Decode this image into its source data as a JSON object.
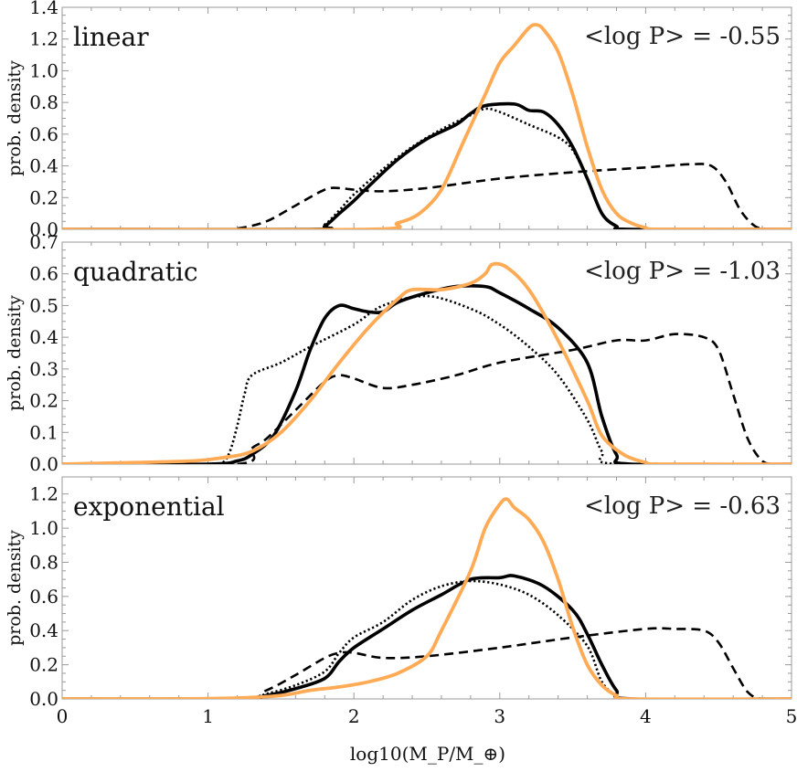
{
  "chart_data": {
    "type": "line",
    "xlabel": "log10(M_P/M_⊕)",
    "xlim": [
      0,
      5
    ],
    "xticks": [
      "0",
      "1",
      "2",
      "3",
      "4",
      "5"
    ],
    "series_styles": [
      {
        "key": "dashed",
        "color": "#000000",
        "dash": "dashed"
      },
      {
        "key": "dotted",
        "color": "#000000",
        "dash": "dotted"
      },
      {
        "key": "solid_black",
        "color": "#000000",
        "dash": "solid"
      },
      {
        "key": "orange",
        "color": "#FFAA55",
        "dash": "solid"
      }
    ],
    "panels": [
      {
        "label": "linear",
        "annotation": "<log P> = -0.55",
        "ylabel": "prob. density",
        "ylim": [
          0,
          1.4
        ],
        "yticks": [
          "0.0",
          "0.2",
          "0.4",
          "0.6",
          "0.8",
          "1.0",
          "1.2",
          "1.4"
        ],
        "series": {
          "dashed": [
            [
              0,
              0
            ],
            [
              1.0,
              0
            ],
            [
              1.2,
              0.005
            ],
            [
              1.4,
              0.05
            ],
            [
              1.6,
              0.15
            ],
            [
              1.8,
              0.25
            ],
            [
              1.9,
              0.26
            ],
            [
              2.0,
              0.25
            ],
            [
              2.2,
              0.24
            ],
            [
              2.5,
              0.26
            ],
            [
              3.0,
              0.32
            ],
            [
              3.5,
              0.36
            ],
            [
              4.0,
              0.39
            ],
            [
              4.3,
              0.41
            ],
            [
              4.45,
              0.4
            ],
            [
              4.55,
              0.3
            ],
            [
              4.65,
              0.12
            ],
            [
              4.75,
              0.02
            ],
            [
              4.85,
              0
            ],
            [
              5,
              0
            ]
          ],
          "dotted": [
            [
              0,
              0
            ],
            [
              1.7,
              0
            ],
            [
              1.8,
              0.03
            ],
            [
              1.9,
              0.12
            ],
            [
              2.0,
              0.22
            ],
            [
              2.2,
              0.38
            ],
            [
              2.4,
              0.52
            ],
            [
              2.6,
              0.63
            ],
            [
              2.8,
              0.72
            ],
            [
              2.9,
              0.76
            ],
            [
              3.0,
              0.74
            ],
            [
              3.2,
              0.66
            ],
            [
              3.4,
              0.58
            ],
            [
              3.5,
              0.5
            ],
            [
              3.6,
              0.32
            ],
            [
              3.7,
              0.1
            ],
            [
              3.8,
              0.02
            ],
            [
              3.9,
              0
            ],
            [
              5,
              0
            ]
          ],
          "solid_black": [
            [
              0,
              0
            ],
            [
              1.7,
              0
            ],
            [
              1.8,
              0.02
            ],
            [
              1.9,
              0.1
            ],
            [
              2.0,
              0.18
            ],
            [
              2.1,
              0.27
            ],
            [
              2.3,
              0.44
            ],
            [
              2.5,
              0.57
            ],
            [
              2.7,
              0.66
            ],
            [
              2.8,
              0.73
            ],
            [
              2.9,
              0.78
            ],
            [
              3.1,
              0.79
            ],
            [
              3.2,
              0.75
            ],
            [
              3.3,
              0.74
            ],
            [
              3.4,
              0.66
            ],
            [
              3.5,
              0.52
            ],
            [
              3.6,
              0.32
            ],
            [
              3.7,
              0.1
            ],
            [
              3.8,
              0.02
            ],
            [
              3.9,
              0
            ],
            [
              5,
              0
            ]
          ],
          "orange": [
            [
              0,
              0
            ],
            [
              2.1,
              0
            ],
            [
              2.3,
              0.04
            ],
            [
              2.45,
              0.1
            ],
            [
              2.6,
              0.25
            ],
            [
              2.75,
              0.55
            ],
            [
              2.9,
              0.85
            ],
            [
              3.0,
              1.05
            ],
            [
              3.1,
              1.16
            ],
            [
              3.2,
              1.27
            ],
            [
              3.25,
              1.29
            ],
            [
              3.3,
              1.26
            ],
            [
              3.4,
              1.12
            ],
            [
              3.5,
              0.85
            ],
            [
              3.6,
              0.52
            ],
            [
              3.7,
              0.25
            ],
            [
              3.8,
              0.1
            ],
            [
              3.9,
              0.04
            ],
            [
              4.0,
              0.01
            ],
            [
              4.1,
              0
            ],
            [
              5,
              0
            ]
          ]
        }
      },
      {
        "label": "quadratic",
        "annotation": "<log P> = -1.03",
        "ylabel": "prob. density",
        "ylim": [
          0,
          0.7
        ],
        "yticks": [
          "0.0",
          "0.1",
          "0.2",
          "0.3",
          "0.4",
          "0.5",
          "0.6",
          "0.7"
        ],
        "series": {
          "dashed": [
            [
              0,
              0
            ],
            [
              1.2,
              0
            ],
            [
              1.3,
              0.05
            ],
            [
              1.4,
              0.08
            ],
            [
              1.6,
              0.17
            ],
            [
              1.8,
              0.26
            ],
            [
              1.9,
              0.28
            ],
            [
              2.0,
              0.27
            ],
            [
              2.2,
              0.24
            ],
            [
              2.4,
              0.25
            ],
            [
              2.7,
              0.28
            ],
            [
              3.0,
              0.32
            ],
            [
              3.5,
              0.36
            ],
            [
              3.8,
              0.39
            ],
            [
              4.0,
              0.39
            ],
            [
              4.2,
              0.41
            ],
            [
              4.4,
              0.4
            ],
            [
              4.5,
              0.36
            ],
            [
              4.6,
              0.22
            ],
            [
              4.7,
              0.08
            ],
            [
              4.8,
              0.01
            ],
            [
              4.9,
              0
            ],
            [
              5,
              0
            ]
          ],
          "dotted": [
            [
              0,
              0
            ],
            [
              1.0,
              0
            ],
            [
              1.1,
              0.005
            ],
            [
              1.15,
              0.04
            ],
            [
              1.2,
              0.12
            ],
            [
              1.25,
              0.22
            ],
            [
              1.3,
              0.28
            ],
            [
              1.5,
              0.32
            ],
            [
              1.7,
              0.37
            ],
            [
              2.0,
              0.44
            ],
            [
              2.2,
              0.5
            ],
            [
              2.5,
              0.53
            ],
            [
              2.8,
              0.49
            ],
            [
              3.0,
              0.44
            ],
            [
              3.2,
              0.37
            ],
            [
              3.4,
              0.28
            ],
            [
              3.6,
              0.14
            ],
            [
              3.7,
              0.04
            ],
            [
              3.8,
              0
            ],
            [
              5,
              0
            ]
          ],
          "solid_black": [
            [
              0,
              0
            ],
            [
              1.0,
              0
            ],
            [
              1.2,
              0.01
            ],
            [
              1.3,
              0.03
            ],
            [
              1.45,
              0.09
            ],
            [
              1.6,
              0.23
            ],
            [
              1.7,
              0.36
            ],
            [
              1.8,
              0.46
            ],
            [
              1.9,
              0.5
            ],
            [
              2.0,
              0.49
            ],
            [
              2.1,
              0.48
            ],
            [
              2.2,
              0.48
            ],
            [
              2.3,
              0.51
            ],
            [
              2.5,
              0.54
            ],
            [
              2.7,
              0.56
            ],
            [
              2.9,
              0.56
            ],
            [
              3.0,
              0.54
            ],
            [
              3.2,
              0.49
            ],
            [
              3.4,
              0.43
            ],
            [
              3.6,
              0.32
            ],
            [
              3.7,
              0.15
            ],
            [
              3.8,
              0.03
            ],
            [
              3.9,
              0
            ],
            [
              5,
              0
            ]
          ],
          "orange": [
            [
              0,
              0
            ],
            [
              0.5,
              0.005
            ],
            [
              0.9,
              0.01
            ],
            [
              1.1,
              0.02
            ],
            [
              1.3,
              0.04
            ],
            [
              1.5,
              0.1
            ],
            [
              1.7,
              0.2
            ],
            [
              1.9,
              0.32
            ],
            [
              2.1,
              0.43
            ],
            [
              2.3,
              0.52
            ],
            [
              2.4,
              0.55
            ],
            [
              2.6,
              0.55
            ],
            [
              2.8,
              0.57
            ],
            [
              2.9,
              0.6
            ],
            [
              2.95,
              0.63
            ],
            [
              3.05,
              0.62
            ],
            [
              3.2,
              0.55
            ],
            [
              3.4,
              0.39
            ],
            [
              3.6,
              0.2
            ],
            [
              3.7,
              0.09
            ],
            [
              3.85,
              0.03
            ],
            [
              4.0,
              0.005
            ],
            [
              4.1,
              0
            ],
            [
              5,
              0
            ]
          ]
        }
      },
      {
        "label": "exponential",
        "annotation": "<log P> = -0.63",
        "ylabel": "prob. density",
        "ylim": [
          0,
          1.3
        ],
        "yticks": [
          "0.0",
          "0.2",
          "0.4",
          "0.6",
          "0.8",
          "1.0",
          "1.2"
        ],
        "series": {
          "dashed": [
            [
              0,
              0
            ],
            [
              1.2,
              0
            ],
            [
              1.4,
              0.05
            ],
            [
              1.6,
              0.14
            ],
            [
              1.8,
              0.24
            ],
            [
              1.9,
              0.27
            ],
            [
              2.0,
              0.27
            ],
            [
              2.2,
              0.24
            ],
            [
              2.5,
              0.25
            ],
            [
              3.0,
              0.3
            ],
            [
              3.5,
              0.36
            ],
            [
              4.0,
              0.41
            ],
            [
              4.2,
              0.41
            ],
            [
              4.4,
              0.4
            ],
            [
              4.5,
              0.33
            ],
            [
              4.6,
              0.18
            ],
            [
              4.7,
              0.04
            ],
            [
              4.8,
              0
            ],
            [
              5,
              0
            ]
          ],
          "dotted": [
            [
              0,
              0
            ],
            [
              1.2,
              0
            ],
            [
              1.4,
              0.03
            ],
            [
              1.6,
              0.08
            ],
            [
              1.8,
              0.16
            ],
            [
              1.9,
              0.27
            ],
            [
              2.0,
              0.36
            ],
            [
              2.2,
              0.45
            ],
            [
              2.4,
              0.58
            ],
            [
              2.6,
              0.66
            ],
            [
              2.8,
              0.69
            ],
            [
              3.0,
              0.67
            ],
            [
              3.2,
              0.61
            ],
            [
              3.4,
              0.49
            ],
            [
              3.6,
              0.31
            ],
            [
              3.7,
              0.1
            ],
            [
              3.8,
              0.02
            ],
            [
              3.9,
              0
            ],
            [
              5,
              0
            ]
          ],
          "solid_black": [
            [
              0,
              0
            ],
            [
              1.2,
              0
            ],
            [
              1.4,
              0.02
            ],
            [
              1.6,
              0.06
            ],
            [
              1.8,
              0.12
            ],
            [
              1.9,
              0.22
            ],
            [
              2.0,
              0.3
            ],
            [
              2.2,
              0.41
            ],
            [
              2.4,
              0.52
            ],
            [
              2.6,
              0.61
            ],
            [
              2.8,
              0.7
            ],
            [
              3.0,
              0.71
            ],
            [
              3.1,
              0.72
            ],
            [
              3.3,
              0.66
            ],
            [
              3.5,
              0.52
            ],
            [
              3.6,
              0.38
            ],
            [
              3.7,
              0.2
            ],
            [
              3.8,
              0.05
            ],
            [
              3.9,
              0
            ],
            [
              5,
              0
            ]
          ],
          "orange": [
            [
              0,
              0
            ],
            [
              0.8,
              0
            ],
            [
              1.2,
              0.005
            ],
            [
              1.5,
              0.02
            ],
            [
              1.7,
              0.05
            ],
            [
              1.9,
              0.07
            ],
            [
              2.1,
              0.1
            ],
            [
              2.3,
              0.15
            ],
            [
              2.5,
              0.25
            ],
            [
              2.6,
              0.4
            ],
            [
              2.8,
              0.75
            ],
            [
              2.9,
              1.0
            ],
            [
              3.0,
              1.14
            ],
            [
              3.05,
              1.17
            ],
            [
              3.1,
              1.12
            ],
            [
              3.2,
              1.05
            ],
            [
              3.3,
              0.92
            ],
            [
              3.4,
              0.7
            ],
            [
              3.5,
              0.42
            ],
            [
              3.6,
              0.2
            ],
            [
              3.7,
              0.08
            ],
            [
              3.8,
              0.02
            ],
            [
              3.9,
              0
            ],
            [
              5,
              0
            ]
          ]
        }
      }
    ]
  }
}
